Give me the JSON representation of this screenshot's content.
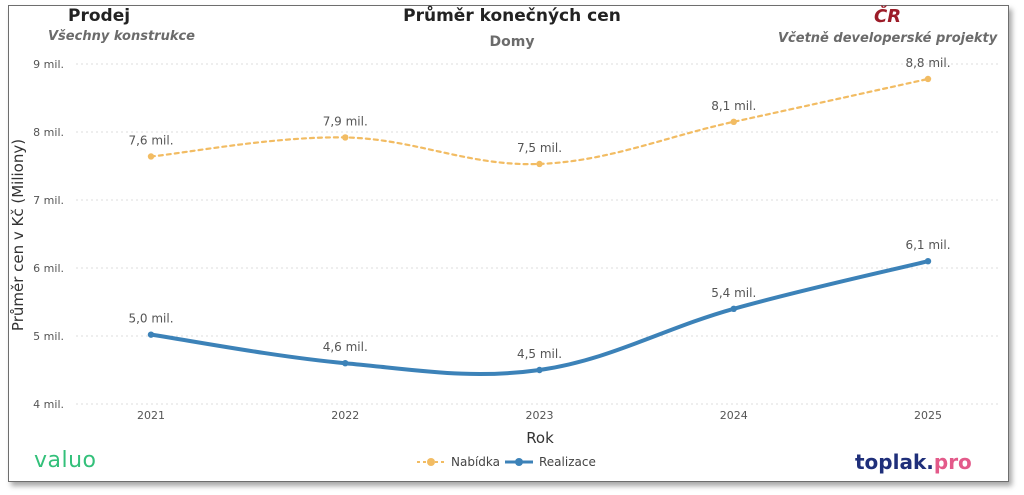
{
  "header": {
    "left_title": "Prodej",
    "left_subtitle": "Všechny konstrukce",
    "center_title": "Průměr konečných cen",
    "center_subtitle": "Domy",
    "right_title": "ČR",
    "right_subtitle": "Včetně developerské projekty"
  },
  "brand": {
    "left_logo": "valuo",
    "right_logo_main": "toplak.",
    "right_logo_accent": "pro"
  },
  "colors": {
    "nabidka": "#f2bc63",
    "realizace": "#3c82b8",
    "grid": "#dcdcdc"
  },
  "chart_data": {
    "type": "line",
    "title": "Průměr konečných cen",
    "subtitle": "Domy",
    "xlabel": "Rok",
    "ylabel": "Průměr cen v Kč (Miliony)",
    "x": [
      "2021",
      "2022",
      "2023",
      "2024",
      "2025"
    ],
    "ylim": [
      4,
      9
    ],
    "y_ticks": [
      4,
      5,
      6,
      7,
      8,
      9
    ],
    "y_tick_labels": [
      "4 mil.",
      "5 mil.",
      "6 mil.",
      "7 mil.",
      "8 mil.",
      "9 mil."
    ],
    "grid": true,
    "legend_position": "bottom",
    "series": [
      {
        "name": "Nabídka",
        "style": "dashed",
        "values": [
          7.64,
          7.92,
          7.53,
          8.15,
          8.78
        ],
        "labels": [
          "7,6 mil.",
          "7,9 mil.",
          "7,5 mil.",
          "8,1 mil.",
          "8,8 mil."
        ]
      },
      {
        "name": "Realizace",
        "style": "solid",
        "values": [
          5.02,
          4.6,
          4.5,
          5.4,
          6.1
        ],
        "labels": [
          "5,0 mil.",
          "4,6 mil.",
          "4,5 mil.",
          "5,4 mil.",
          "6,1 mil."
        ]
      }
    ]
  }
}
